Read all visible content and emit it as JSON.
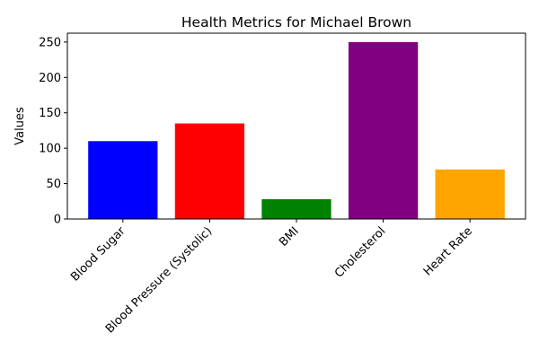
{
  "chart_data": {
    "type": "bar",
    "title": "Health Metrics for Michael Brown",
    "xlabel": "",
    "ylabel": "Values",
    "categories": [
      "Blood Sugar",
      "Blood Pressure (Systolic)",
      "BMI",
      "Cholesterol",
      "Heart Rate"
    ],
    "values": [
      110,
      135,
      28,
      250,
      70
    ],
    "colors": [
      "#0000ff",
      "#ff0000",
      "#008000",
      "#800080",
      "#ffa500"
    ],
    "ylim": [
      0,
      262.5
    ],
    "yticks": [
      0,
      50,
      100,
      150,
      200,
      250
    ],
    "ytick_labels": [
      "0",
      "50",
      "100",
      "150",
      "200",
      "250"
    ],
    "xtick_rotation": 45,
    "grid": false,
    "legend": false
  }
}
